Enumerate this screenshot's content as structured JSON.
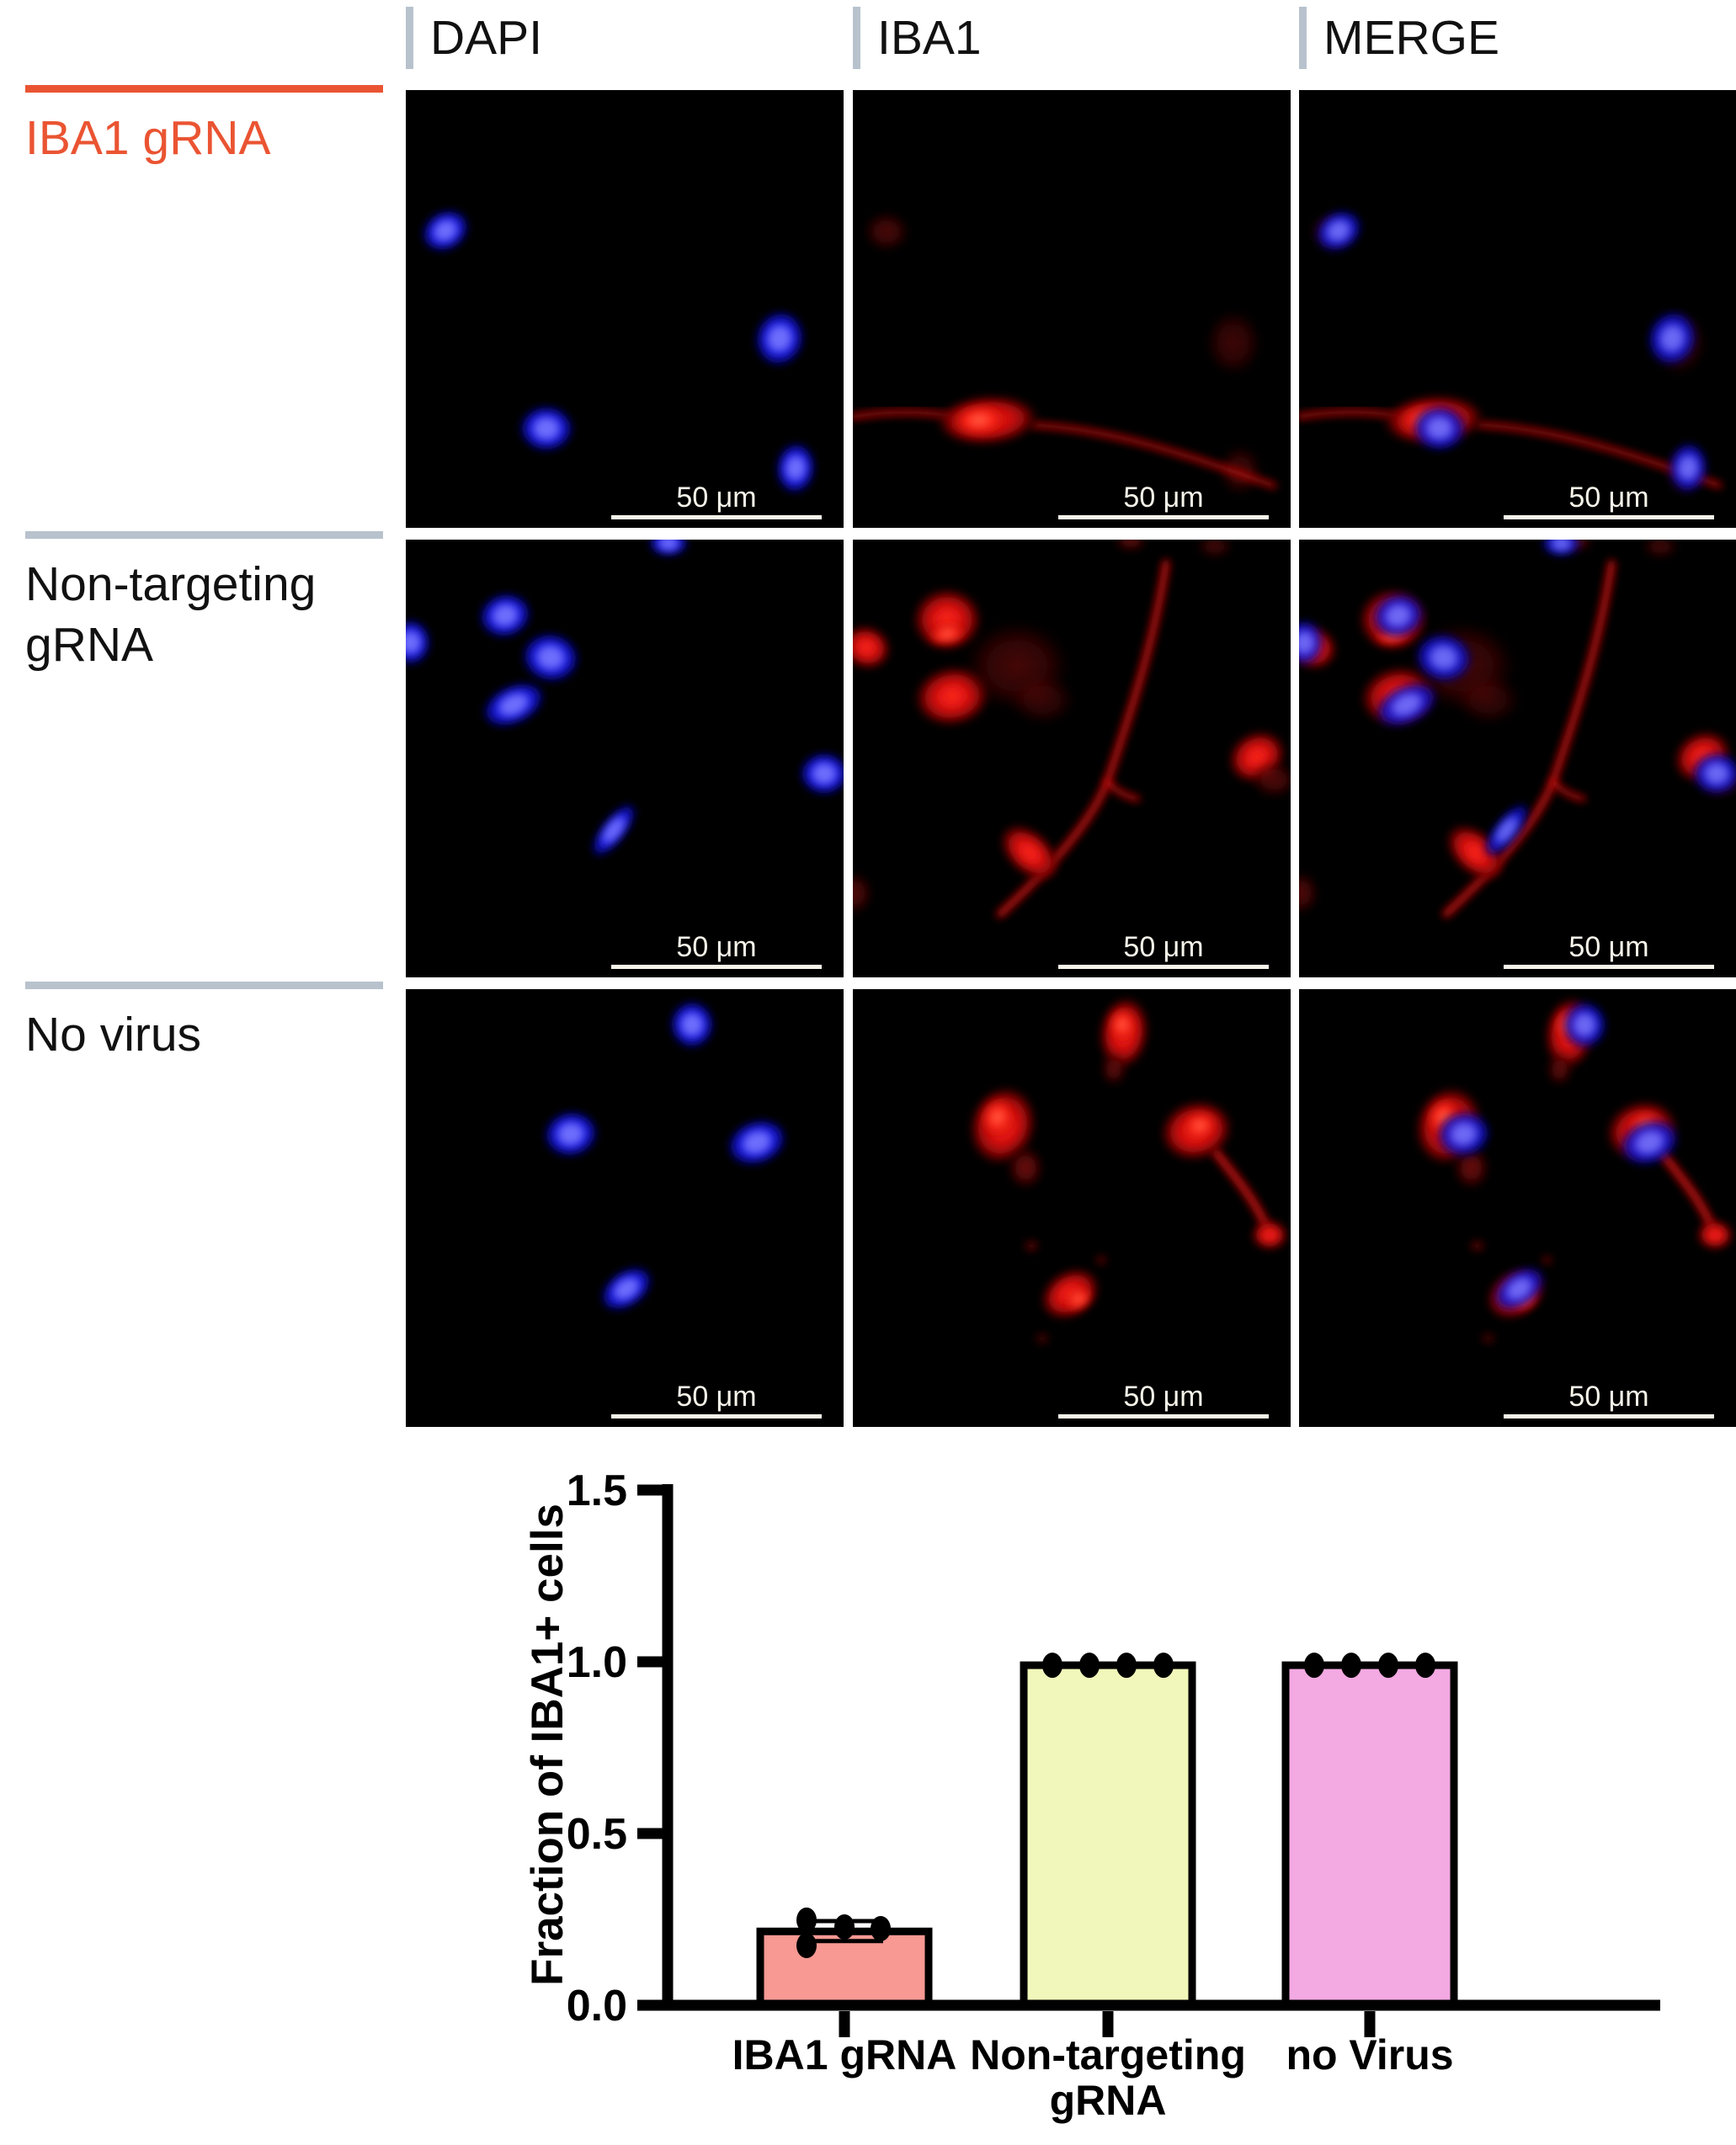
{
  "figure": {
    "column_headers": [
      {
        "label": "DAPI"
      },
      {
        "label": "IBA1"
      },
      {
        "label": "MERGE"
      }
    ],
    "rows": [
      {
        "lines": [
          "IBA1 gRNA"
        ],
        "color": "#EA5432",
        "divider_color": "#EA5432"
      },
      {
        "lines": [
          "Non-targeting",
          "gRNA"
        ],
        "color": "#111111",
        "divider_color": "#B7C2CD"
      },
      {
        "lines": [
          "No virus"
        ],
        "color": "#111111",
        "divider_color": "#B7C2CD"
      }
    ],
    "scale_bar_label": "50 μm",
    "accent_orange": "#EA5432",
    "divider_gray": "#B7C2CD"
  },
  "chart_data": {
    "type": "bar",
    "title": "",
    "xlabel": "",
    "ylabel": "Fraction of IBA1+ cells",
    "ylim": [
      0,
      1.5
    ],
    "ytick_labels": [
      "0.0",
      "0.5",
      "1.0",
      "1.5"
    ],
    "grid": false,
    "legend": null,
    "categories": [
      [
        "IBA1 gRNA"
      ],
      [
        "Non-targeting",
        "gRNA"
      ],
      [
        "no Virus"
      ]
    ],
    "values": [
      0.215,
      0.99,
      0.99
    ],
    "bar_colors": [
      "#F89993",
      "#F1F6BA",
      "#F3A9E2"
    ],
    "bar_edge_color": "#000000",
    "points": [
      {
        "x_offsets": [
          -45,
          0,
          43,
          -45
        ],
        "values": [
          0.248,
          0.228,
          0.223,
          0.174
        ]
      },
      {
        "x_offsets": [
          -66,
          -22,
          22,
          66
        ],
        "values": [
          0.99,
          0.99,
          0.99,
          0.99
        ]
      },
      {
        "x_offsets": [
          -66,
          -22,
          22,
          66
        ],
        "values": [
          0.99,
          0.99,
          0.99,
          0.99
        ]
      }
    ],
    "error_bars": [
      {
        "series": 0,
        "upper": 0.245,
        "lower": 0.187
      }
    ]
  }
}
